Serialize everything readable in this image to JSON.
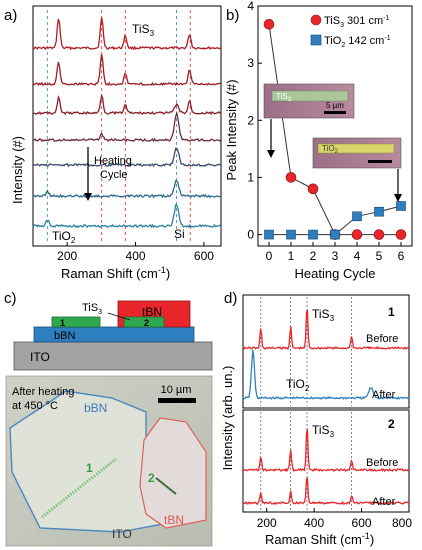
{
  "panels": {
    "a": {
      "letter": "a)",
      "ylabel": "Intensity (#)",
      "xlabel": "Raman Shift (cm",
      "xlabel_sup": "-1",
      "xlabel_close": ")",
      "xticks": [
        "200",
        "400",
        "600"
      ],
      "label_tis3_main": "TiS",
      "label_tis3_sub": "3",
      "label_heating": "Heating",
      "label_cycle": "Cycle",
      "label_tio2_main": "TiO",
      "label_tio2_sub": "2",
      "label_si": "Si"
    },
    "b": {
      "letter": "b)",
      "ylabel": "Peak Intensity (#)",
      "xlabel": "Heating Cycle",
      "legend": [
        {
          "main": "TiS",
          "sub": "3",
          "rest": " 301 cm",
          "sup": "-1"
        },
        {
          "main": "TiO",
          "sub": "2",
          "rest": " 142 cm",
          "sup": "-1"
        }
      ],
      "inset1_main": "TiS",
      "inset1_sub": "3",
      "inset1_scale": "5 µm",
      "inset2_main": "TiO",
      "inset2_sub": "2"
    },
    "c": {
      "letter": "c)",
      "stack_tis3_main": "TiS",
      "stack_tis3_sub": "3",
      "stack_tbn": "tBN",
      "stack_bbn": "bBN",
      "stack_ito": "ITO",
      "flake1": "1",
      "flake2": "2",
      "photo_text1": "After heating",
      "photo_text2": "at 450 °C",
      "photo_scale": "10 µm",
      "photo_bbn": "bBN",
      "photo_tbn": "tBN",
      "photo_ito": "ITO",
      "photo_1": "1",
      "photo_2": "2"
    },
    "d": {
      "letter": "d)",
      "ylabel": "Intensity (arb. un.)",
      "xlabel": "Raman Shift (cm",
      "xlabel_sup": "-1",
      "xlabel_close": ")",
      "xticks": [
        "200",
        "400",
        "600",
        "800"
      ],
      "box1_number": "1",
      "box1_tis3_main": "TiS",
      "box1_tis3_sub": "3",
      "box1_before": "Before",
      "box1_tio2_main": "TiO",
      "box1_tio2_sub": "2",
      "box1_after": "After",
      "box2_number": "2",
      "box2_tis3_main": "TiS",
      "box2_tis3_sub": "3",
      "box2_before": "Before",
      "box2_after": "After"
    }
  },
  "chart_data": [
    {
      "panel": "b",
      "type": "scatter",
      "xlabel": "Heating Cycle",
      "ylabel": "Peak Intensity (#)",
      "xlim": [
        -0.5,
        6.5
      ],
      "ylim": [
        -0.2,
        4
      ],
      "xticks": [
        0,
        1,
        2,
        3,
        4,
        5,
        6
      ],
      "yticks": [
        0,
        1,
        2,
        3,
        4
      ],
      "legend_position": "top-right",
      "series": [
        {
          "name": "TiS3 301 cm-1",
          "color": "#e8262a",
          "marker": "circle",
          "x": [
            0,
            1,
            2,
            3,
            4,
            5,
            6
          ],
          "y": [
            3.68,
            1.0,
            0.8,
            0.0,
            0.0,
            0.0,
            0.0
          ]
        },
        {
          "name": "TiO2 142 cm-1",
          "color": "#2e7fc0",
          "marker": "square",
          "x": [
            0,
            1,
            2,
            3,
            4,
            5,
            6
          ],
          "y": [
            0.0,
            0.0,
            0.0,
            0.0,
            0.32,
            0.4,
            0.5
          ]
        }
      ]
    },
    {
      "panel": "a",
      "type": "line",
      "xlabel": "Raman Shift (cm-1)",
      "ylabel": "Intensity (#)",
      "xlim": [
        100,
        650
      ],
      "xticks": [
        200,
        400,
        600
      ],
      "dashed_markers_x": [
        142,
        301,
        370,
        520,
        560
      ],
      "series": [
        {
          "name": "",
          "color": "#b01e24",
          "peaks": [
            175,
            301,
            370,
            558
          ]
        },
        {
          "name": "",
          "color": "#a01e28",
          "peaks": [
            175,
            301,
            370,
            558
          ]
        },
        {
          "name": "",
          "color": "#8a1e2c",
          "peaks": [
            175,
            301,
            370,
            520,
            558
          ]
        },
        {
          "name": "",
          "color": "#6a2a40",
          "peaks": [
            301,
            520
          ]
        },
        {
          "name": "",
          "color": "#3b4a6e",
          "peaks": [
            520
          ]
        },
        {
          "name": "",
          "color": "#2a6a8c",
          "peaks": [
            142,
            520
          ]
        },
        {
          "name": "",
          "color": "#2a80a0",
          "peaks": [
            142,
            520
          ]
        }
      ]
    },
    {
      "panel": "d",
      "type": "line",
      "xlabel": "Raman Shift (cm-1)",
      "ylabel": "Intensity (arb. un.)",
      "xlim": [
        100,
        800
      ],
      "xticks": [
        200,
        400,
        600,
        800
      ],
      "dashed_markers_x": [
        175,
        301,
        370,
        558
      ],
      "series": [
        {
          "name": "Before",
          "color": "#e8262a",
          "peaks": [
            175,
            301,
            370,
            558
          ]
        },
        {
          "name": "After",
          "color": "#2e7fc0",
          "peaks": [
            142,
            640
          ]
        },
        {
          "name": "Before",
          "color": "#e8262a",
          "peaks": [
            175,
            301,
            370,
            558
          ]
        },
        {
          "name": "After",
          "color": "#e8262a",
          "peaks": [
            175,
            301,
            370,
            558
          ]
        }
      ]
    }
  ]
}
